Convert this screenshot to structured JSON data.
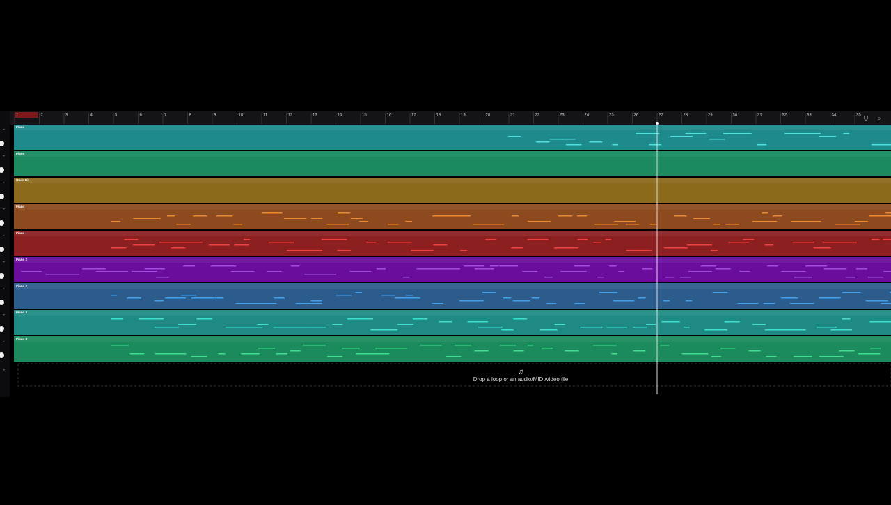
{
  "ruler": [
    1,
    2,
    3,
    4,
    5,
    6,
    7,
    8,
    9,
    10,
    11,
    12,
    13,
    14,
    15,
    16,
    17,
    18,
    19,
    20,
    21,
    22,
    23,
    24,
    25,
    26,
    27,
    28,
    29,
    30,
    31,
    32,
    33,
    34,
    35
  ],
  "tracks": [
    {
      "name": "Piano",
      "color": "#1f8a8c",
      "note": "#4fe0e0"
    },
    {
      "name": "Piano",
      "color": "#1b8a5f",
      "note": "#5fe0a0"
    },
    {
      "name": "Drum Kit",
      "color": "#8c6a1c",
      "note": "#e0b040"
    },
    {
      "name": "Piano",
      "color": "#8c4a1e",
      "note": "#f08a30"
    },
    {
      "name": "Piano",
      "color": "#8c2020",
      "note": "#f04040"
    },
    {
      "name": "Piano 2",
      "color": "#6a0c9c",
      "note": "#a050e0"
    },
    {
      "name": "Piano 2",
      "color": "#2c5c8c",
      "note": "#40a0f0"
    },
    {
      "name": "Piano 3",
      "color": "#1f8a84",
      "note": "#40e0d0"
    },
    {
      "name": "Piano 3",
      "color": "#1b8a5c",
      "note": "#40e090"
    }
  ],
  "drop_text": "Drop a loop or an audio/MIDI/video file"
}
